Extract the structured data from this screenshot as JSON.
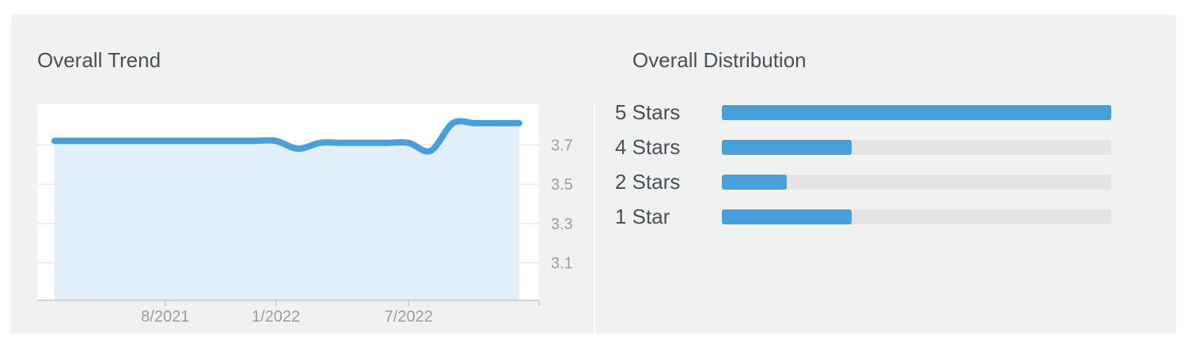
{
  "trend": {
    "title": "Overall Trend",
    "chart_data": {
      "type": "area",
      "x": [
        "2021-03",
        "2021-04",
        "2021-05",
        "2021-06",
        "2021-07",
        "2021-08",
        "2021-09",
        "2021-10",
        "2021-11",
        "2021-12",
        "2022-01",
        "2022-02",
        "2022-03",
        "2022-04",
        "2022-05",
        "2022-06",
        "2022-07",
        "2022-08",
        "2022-09",
        "2022-10",
        "2022-11",
        "2022-12"
      ],
      "x_tick_labels": [
        {
          "at": "2021-08",
          "label": "8/2021"
        },
        {
          "at": "2022-01",
          "label": "1/2022"
        },
        {
          "at": "2022-07",
          "label": "7/2022"
        }
      ],
      "values": [
        3.72,
        3.72,
        3.72,
        3.72,
        3.72,
        3.72,
        3.72,
        3.72,
        3.72,
        3.72,
        3.72,
        3.68,
        3.71,
        3.71,
        3.71,
        3.71,
        3.71,
        3.67,
        3.81,
        3.81,
        3.81,
        3.81
      ],
      "y_ticks": [
        3.1,
        3.3,
        3.5,
        3.7
      ],
      "ylim": [
        2.91,
        3.91
      ],
      "y_axis_side": "right",
      "grid": true,
      "line_color": "#479fdc",
      "fill_color": "#e3eff8"
    }
  },
  "distribution": {
    "title": "Overall Distribution",
    "bar_color": "#479fdc",
    "track_color": "#e4e4e4",
    "rows": [
      {
        "label": "5 Stars",
        "fraction": 1.0
      },
      {
        "label": "4 Stars",
        "fraction": 0.333
      },
      {
        "label": "2 Stars",
        "fraction": 0.167
      },
      {
        "label": "1 Star",
        "fraction": 0.333
      }
    ]
  }
}
